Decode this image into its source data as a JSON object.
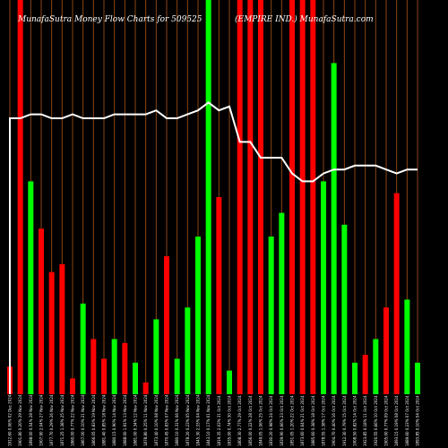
{
  "chart_data": {
    "type": "bar",
    "title_left": "MunafaSutra  Money Flow  Charts for 509525",
    "title_right": "(EMPIRE IND.) MunafaSutra.com",
    "ylim": [
      0,
      100
    ],
    "grid_vertical": true,
    "colors": {
      "up": "#00ff00",
      "down": "#ff0000",
      "line": "#ffffff",
      "grid": "#8b4513",
      "background": "#000000"
    },
    "bars": [
      {
        "label": "1912.60 0.06% 02 Dec 2024",
        "value": 7,
        "dir": "down"
      },
      {
        "label": "1901.80 0.20% 29 Nov 2024",
        "value": 100,
        "dir": "down"
      },
      {
        "label": "1898.00 0.54% 28 Nov 2024",
        "value": 54,
        "dir": "up"
      },
      {
        "label": "1907.90 2.04% 27 Nov 2024",
        "value": 42,
        "dir": "down"
      },
      {
        "label": "1877.70 0.29% 26 Nov 2024",
        "value": 31,
        "dir": "down"
      },
      {
        "label": "1871.25 1.38% 25 Nov 2024",
        "value": 33,
        "dir": "down"
      },
      {
        "label": "1860.00 0.77% 22 Nov 2024",
        "value": 4,
        "dir": "down"
      },
      {
        "label": "1867.00 0.10% 21 Nov 2024",
        "value": 23,
        "dir": "up"
      },
      {
        "label": "1866.05 0.83% 19 Nov 2024",
        "value": 14,
        "dir": "down"
      },
      {
        "label": "1881.40 0.85% 18 Nov 2024",
        "value": 9,
        "dir": "down"
      },
      {
        "label": "1880.15 0.90% 14 Nov 2024",
        "value": 14,
        "dir": "up"
      },
      {
        "label": "1888.00 1.91% 13 Nov 2024",
        "value": 13,
        "dir": "down"
      },
      {
        "label": "1881.00 0.34% 12 Nov 2024",
        "value": 8,
        "dir": "up"
      },
      {
        "label": "1878.80 0.25% 11 Nov 2024",
        "value": 3,
        "dir": "down"
      },
      {
        "label": "1873.40 0.10% 08 Nov 2024",
        "value": 19,
        "dir": "up"
      },
      {
        "label": "1870.45 0.83% 07 Nov 2024",
        "value": 35,
        "dir": "down"
      },
      {
        "label": "1880.10 0.31% 06 Nov 2024",
        "value": 9,
        "dir": "up"
      },
      {
        "label": "1878.20 0.23% 05 Nov 2024",
        "value": 22,
        "dir": "up"
      },
      {
        "label": "1845.30 2.33% 04 Nov 2024",
        "value": 40,
        "dir": "up"
      },
      {
        "label": "1843.10 0.17% 01 Nov 2024",
        "value": 100,
        "dir": "up"
      },
      {
        "label": "1819.35 2.03% 31 Oct 2024",
        "value": 50,
        "dir": "down"
      },
      {
        "label": "1835.00 0.74% 30 Oct 2024",
        "value": 6,
        "dir": "up"
      },
      {
        "label": "1808.30 2.77% 29 Oct 2024",
        "value": 100,
        "dir": "down"
      },
      {
        "label": "1856.00 0.22% 28 Oct 2024",
        "value": 100,
        "dir": "down"
      },
      {
        "label": "1849.05 1.06% 25 Oct 2024",
        "value": 100,
        "dir": "down"
      },
      {
        "label": "1830.20 0.98% 24 Oct 2024",
        "value": 40,
        "dir": "up"
      },
      {
        "label": "1839.90 0.66% 23 Oct 2024",
        "value": 46,
        "dir": "up"
      },
      {
        "label": "1851.05 1.20% 22 Oct 2024",
        "value": 100,
        "dir": "down"
      },
      {
        "label": "1873.60 0.64% 21 Oct 2024",
        "value": 100,
        "dir": "down"
      },
      {
        "label": "1885.60 0.38% 18 Oct 2024",
        "value": 100,
        "dir": "down"
      },
      {
        "label": "1878.55 1.38% 17 Oct 2024",
        "value": 54,
        "dir": "up"
      },
      {
        "label": "1904.70 0.40% 16 Oct 2024",
        "value": 84,
        "dir": "up"
      },
      {
        "label": "1912.30 0.79% 15 Oct 2024",
        "value": 43,
        "dir": "up"
      },
      {
        "label": "1908.50 0.82% 14 Oct 2024",
        "value": 8,
        "dir": "up"
      },
      {
        "label": "1923.85 0.18% 11 Oct 2024",
        "value": 10,
        "dir": "down"
      },
      {
        "label": "1920.55 0.66% 10 Oct 2024",
        "value": 14,
        "dir": "up"
      },
      {
        "label": "1905.00 0.77% 09 Oct 2024",
        "value": 22,
        "dir": "down"
      },
      {
        "label": "1893.15 0.19% 08 Oct 2024",
        "value": 51,
        "dir": "down"
      },
      {
        "label": "1889.60 0.23% 07 Oct 2024",
        "value": 24,
        "dir": "up"
      },
      {
        "label": "1893.85 0.10% 04 Oct 2024",
        "value": 8,
        "dir": "up"
      }
    ],
    "price_line": [
      1,
      2,
      1,
      1,
      1,
      1,
      1,
      1,
      1,
      1,
      1,
      1,
      1,
      1,
      1,
      1,
      1,
      1,
      1,
      1,
      1,
      1,
      2,
      2,
      2,
      2,
      2,
      2,
      2,
      2,
      2,
      2,
      2,
      2,
      2,
      2,
      2,
      2,
      2,
      2
    ],
    "price_line_values": [
      70,
      70,
      71,
      71,
      70,
      70,
      71,
      70,
      70,
      70,
      71,
      71,
      71,
      71,
      72,
      70,
      70,
      71,
      72,
      74,
      72,
      73,
      64,
      64,
      60,
      60,
      60,
      56,
      54,
      54,
      56,
      57,
      57,
      58,
      58,
      58,
      57,
      56,
      57,
      57
    ]
  }
}
